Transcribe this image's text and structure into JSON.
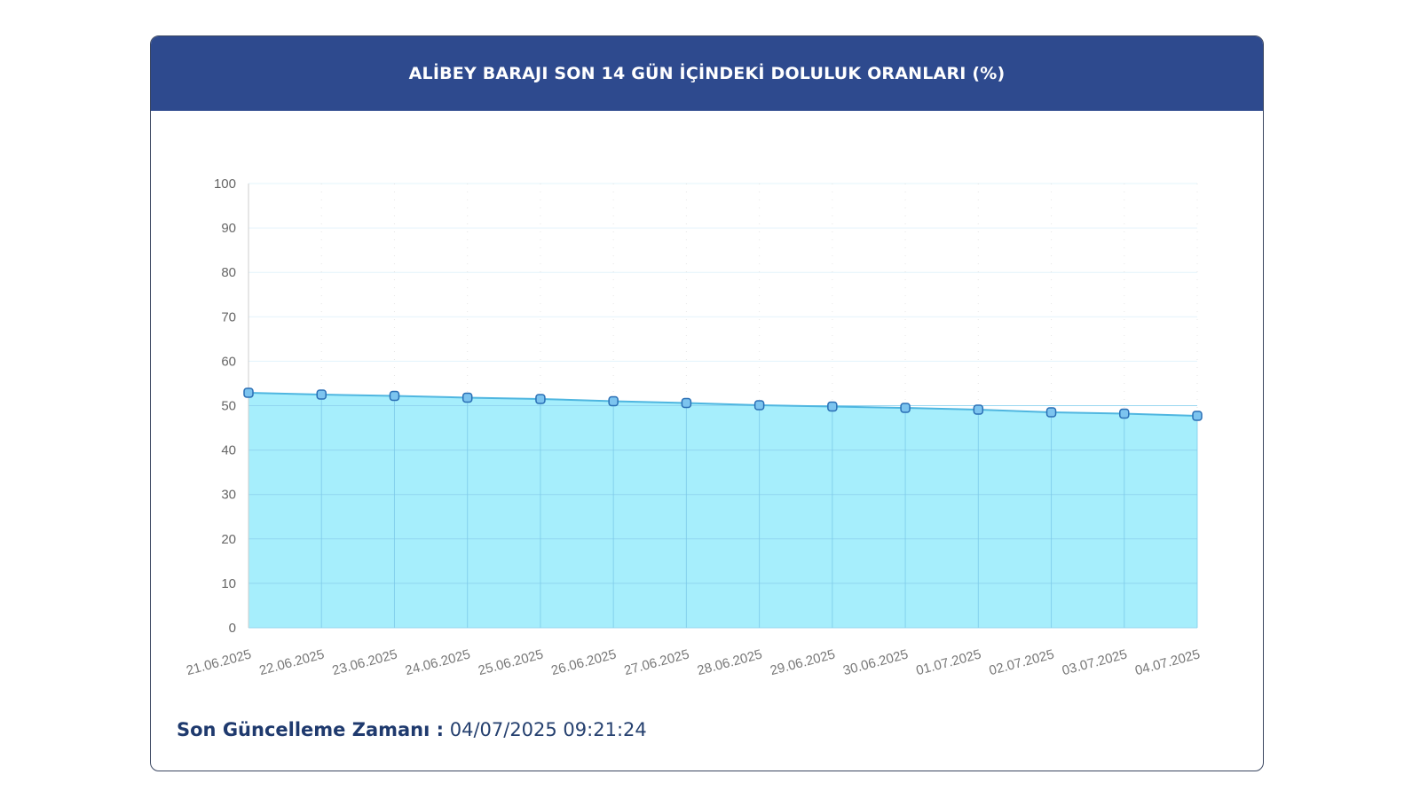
{
  "header": {
    "title": "ALİBEY BARAJI SON 14 GÜN İÇİNDEKİ DOLULUK ORANLARI (%)"
  },
  "footer": {
    "label": "Son Güncelleme Zamanı :",
    "value": "04/07/2025 09:21:24"
  },
  "colors": {
    "header_bg": "#2e4a8e",
    "area_fill": "#a6eefc",
    "line": "#4fb6e0",
    "point_fill": "#7cc4ef",
    "point_stroke": "#2a6fb5"
  },
  "chart_data": {
    "type": "area",
    "title": "ALİBEY BARAJI SON 14 GÜN İÇİNDEKİ DOLULUK ORANLARI (%)",
    "xlabel": "",
    "ylabel": "",
    "ylim": [
      0,
      100
    ],
    "yticks": [
      0,
      10,
      20,
      30,
      40,
      50,
      60,
      70,
      80,
      90,
      100
    ],
    "grid": true,
    "categories": [
      "21.06.2025",
      "22.06.2025",
      "23.06.2025",
      "24.06.2025",
      "25.06.2025",
      "26.06.2025",
      "27.06.2025",
      "28.06.2025",
      "29.06.2025",
      "30.06.2025",
      "01.07.2025",
      "02.07.2025",
      "03.07.2025",
      "04.07.2025"
    ],
    "series": [
      {
        "values": [
          52.9,
          52.5,
          52.2,
          51.8,
          51.5,
          51.0,
          50.6,
          50.1,
          49.8,
          49.5,
          49.1,
          48.5,
          48.2,
          47.7
        ]
      }
    ]
  }
}
